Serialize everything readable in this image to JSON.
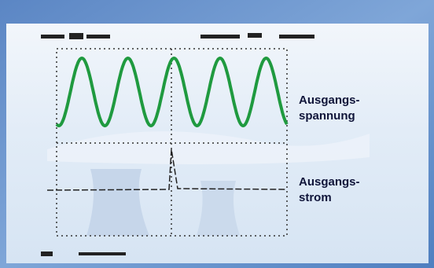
{
  "labels": [
    {
      "lines": [
        "Ausgangs-",
        "spannung"
      ]
    },
    {
      "lines": [
        "Ausgangs-",
        "strom"
      ]
    }
  ]
}
